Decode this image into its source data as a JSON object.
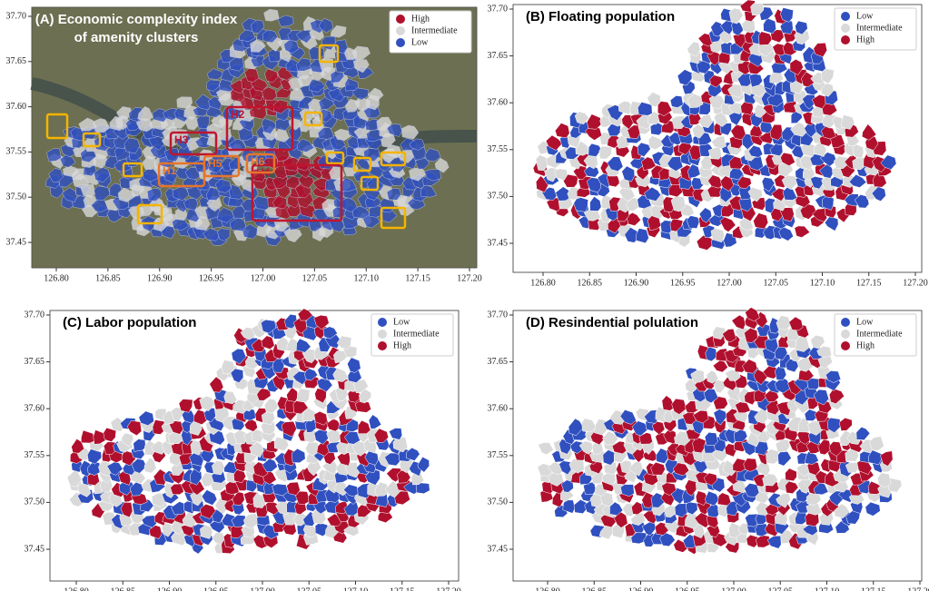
{
  "panels": [
    {
      "title_lines": [
        "(A) Economic  complexity index",
        "of amenity clusters"
      ],
      "legend": [
        {
          "label": "High",
          "color": "#b0102e"
        },
        {
          "label": "Intermediate",
          "color": "#d9d9d9"
        },
        {
          "label": "Low",
          "color": "#3050c0"
        }
      ],
      "annotations": [
        "H1",
        "H2",
        "H3",
        "H4",
        "H5",
        "H6"
      ],
      "xtick_labels": [
        "126.80",
        "126.85",
        "126.90",
        "126.95",
        "127.00",
        "127.05",
        "127.10",
        "127.15",
        "127.20"
      ],
      "ytick_labels": [
        "37.45",
        "37.50",
        "37.55",
        "37.60",
        "37.65",
        "37.70"
      ]
    },
    {
      "title_lines": [
        "(B) Floating population"
      ],
      "legend": [
        {
          "label": "Low",
          "color": "#3050c0"
        },
        {
          "label": "Intermediate",
          "color": "#d9d9d9"
        },
        {
          "label": "High",
          "color": "#b0102e"
        }
      ],
      "xtick_labels": [
        "126.80",
        "126.85",
        "126.90",
        "126.95",
        "127.00",
        "127.05",
        "127.10",
        "127.15",
        "127.20"
      ],
      "ytick_labels": [
        "37.45",
        "37.50",
        "37.55",
        "37.60",
        "37.65",
        "37.70"
      ]
    },
    {
      "title_lines": [
        "(C) Labor population"
      ],
      "legend": [
        {
          "label": "Low",
          "color": "#3050c0"
        },
        {
          "label": "Intermediate",
          "color": "#d9d9d9"
        },
        {
          "label": "High",
          "color": "#b0102e"
        }
      ],
      "xtick_labels": [
        "126.80",
        "126.85",
        "126.90",
        "126.95",
        "127.00",
        "127.05",
        "127.10",
        "127.15",
        "127.20"
      ],
      "ytick_labels": [
        "37.45",
        "37.50",
        "37.55",
        "37.60",
        "37.65",
        "37.70"
      ]
    },
    {
      "title_lines": [
        "(D) Resindential polulation"
      ],
      "legend": [
        {
          "label": "Low",
          "color": "#3050c0"
        },
        {
          "label": "Intermediate",
          "color": "#d9d9d9"
        },
        {
          "label": "High",
          "color": "#b0102e"
        }
      ],
      "xtick_labels": [
        "126.80",
        "126.85",
        "126.90",
        "126.95",
        "127.00",
        "127.05",
        "127.10",
        "127.15",
        "127.20"
      ],
      "ytick_labels": [
        "37.45",
        "37.50",
        "37.55",
        "37.60",
        "37.65",
        "37.70"
      ]
    }
  ]
}
